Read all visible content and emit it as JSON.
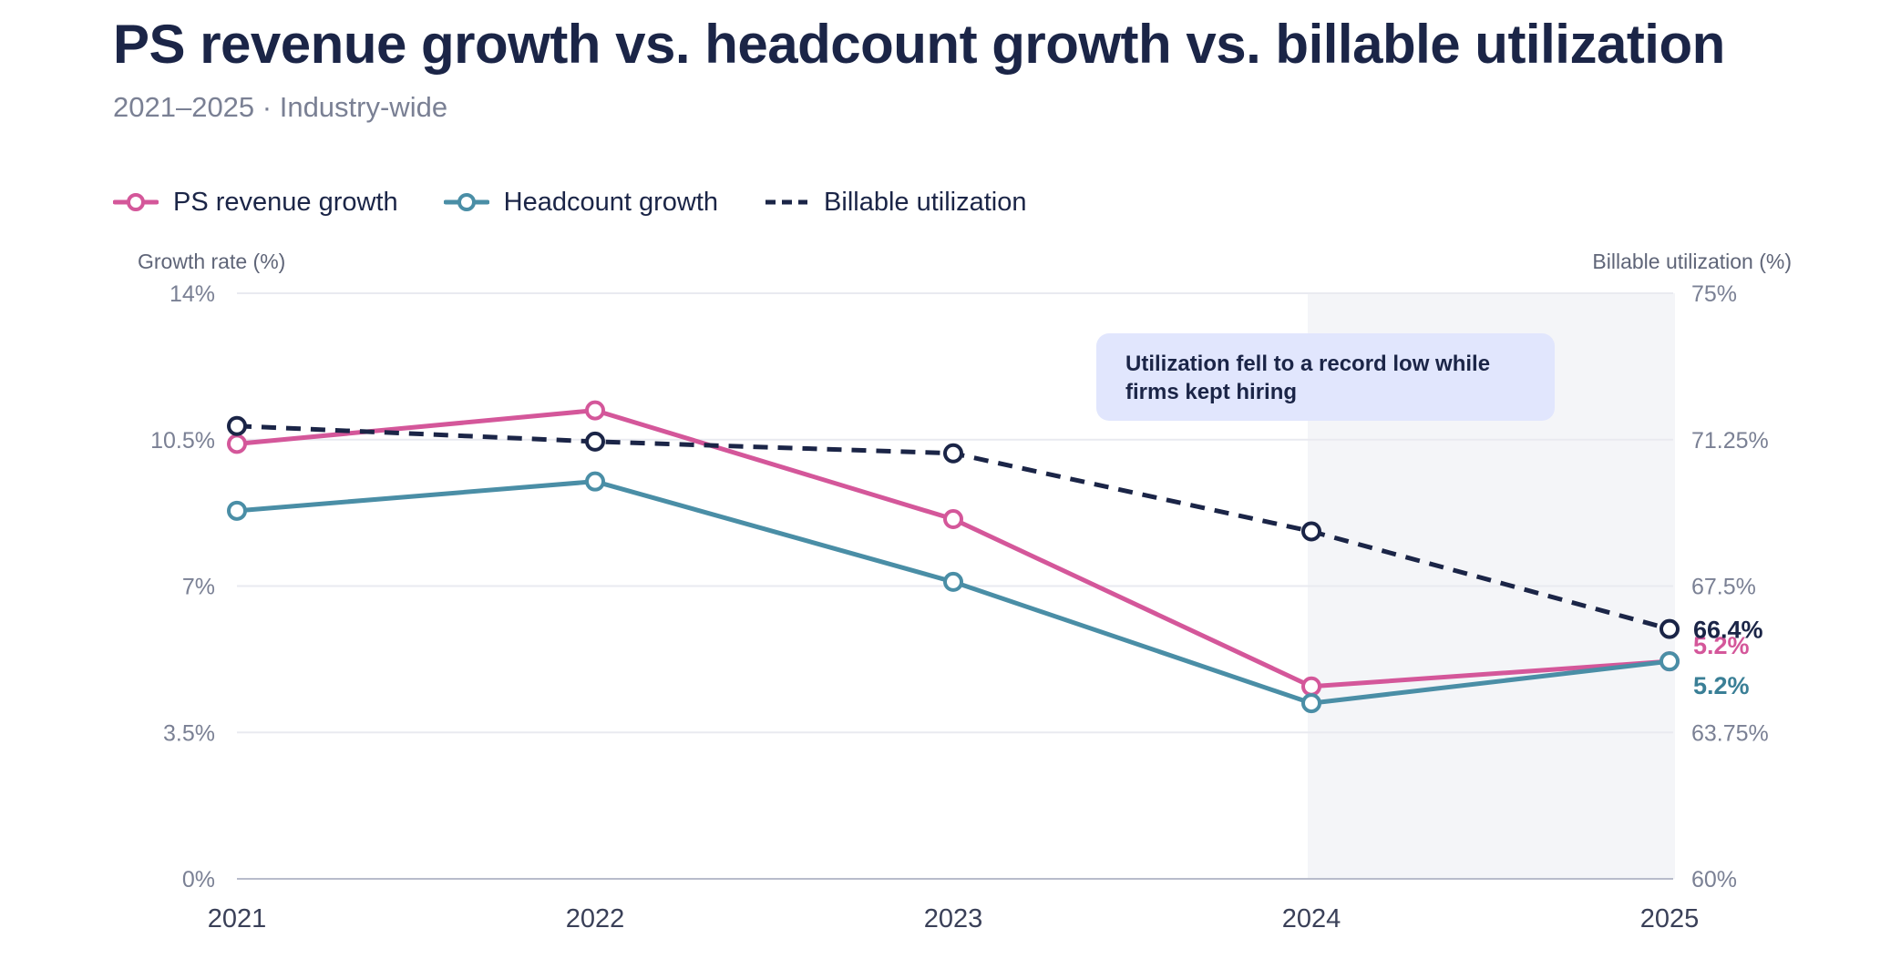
{
  "chart_data": {
    "type": "line",
    "title": "PS revenue growth vs. headcount growth vs. billable utilization",
    "subtitle": "2021–2025 · Industry-wide",
    "categories": [
      "2021",
      "2022",
      "2023",
      "2024",
      "2025"
    ],
    "y_left": {
      "label": "Growth rate (%)",
      "range": [
        0,
        14
      ],
      "ticks": [
        0,
        3.5,
        7,
        10.5,
        14
      ],
      "tick_labels": [
        "0%",
        "3.5%",
        "7%",
        "10.5%",
        "14%"
      ]
    },
    "y_right": {
      "label": "Billable utilization (%)",
      "range": [
        60,
        75
      ],
      "ticks": [
        60,
        63.75,
        67.5,
        71.25,
        75
      ],
      "tick_labels": [
        "60%",
        "63.75%",
        "67.5%",
        "71.25%",
        "75%"
      ]
    },
    "grid": true,
    "legend_position": "top-left",
    "series": [
      {
        "name": "PS revenue growth",
        "axis": "left",
        "style": "solid-markers",
        "color": "#d4579a",
        "values": [
          10.4,
          11.2,
          8.6,
          4.6,
          5.2
        ],
        "end_label": "5.2%"
      },
      {
        "name": "Headcount growth",
        "axis": "left",
        "style": "solid-markers",
        "color": "#4a8ea6",
        "values": [
          8.8,
          9.5,
          7.1,
          4.2,
          5.2
        ],
        "end_label": "5.2%"
      },
      {
        "name": "Billable utilization",
        "axis": "right",
        "style": "dashed",
        "color": "#1b2547",
        "values": [
          71.6,
          71.2,
          70.9,
          68.9,
          66.4
        ],
        "end_label": "66.4%"
      }
    ],
    "highlight_region": {
      "from": "2024",
      "to": "2025"
    },
    "annotation": {
      "category": "2024",
      "text": "Utilization fell to a record low while firms kept hiring"
    }
  }
}
